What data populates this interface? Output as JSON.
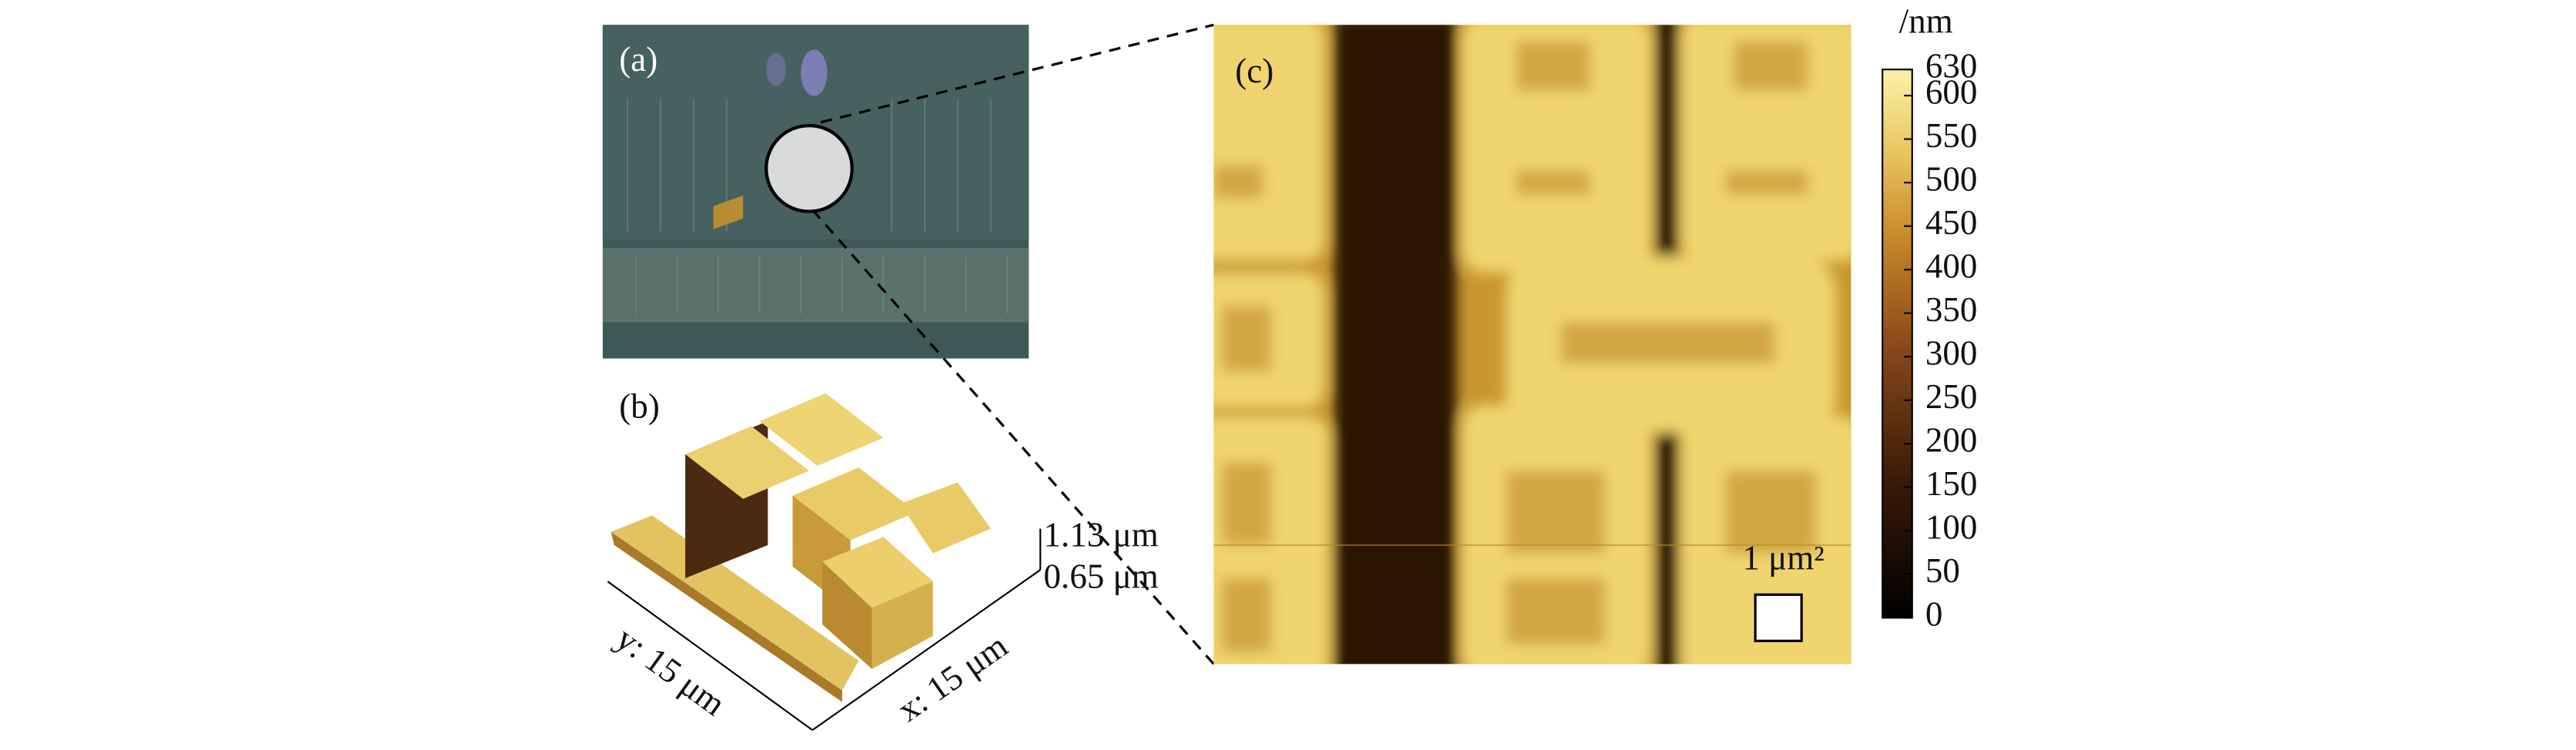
{
  "panels": {
    "a": {
      "label": "(a)"
    },
    "b": {
      "label": "(b)",
      "height_max": "1.13 μm",
      "height_min": "0.65 μm",
      "y_axis": "y: 15 μm",
      "x_axis": "x: 15 μm"
    },
    "c": {
      "label": "(c)",
      "scale_bar": "1 μm²"
    }
  },
  "colorbar": {
    "unit": "/nm",
    "lim": [
      0,
      630
    ],
    "ticks": [
      0,
      50,
      100,
      150,
      200,
      250,
      300,
      350,
      400,
      450,
      500,
      550,
      600,
      630
    ]
  }
}
